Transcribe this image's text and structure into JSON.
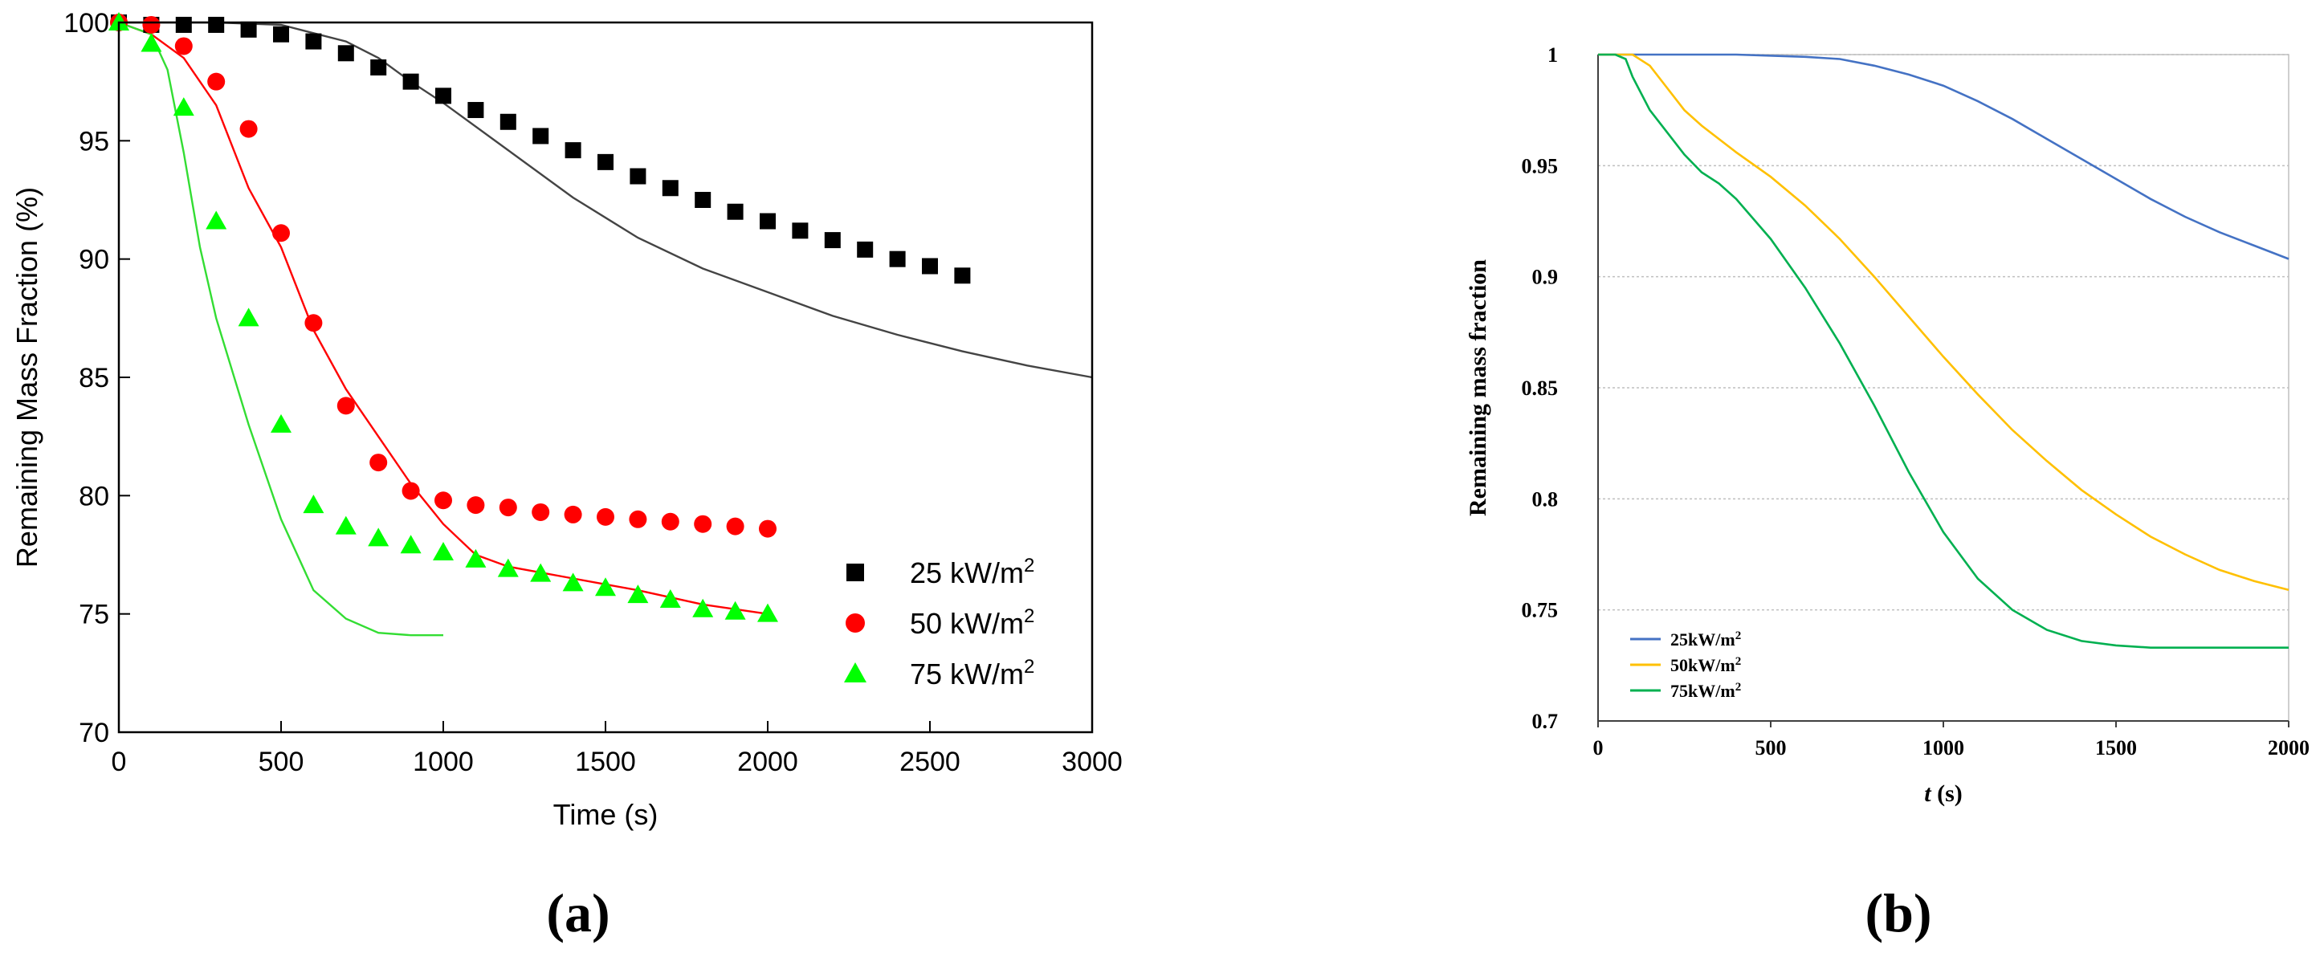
{
  "chart_data": [
    {
      "panel": "a",
      "type": "scatter",
      "caption": "(a)",
      "xlabel": "Time (s)",
      "ylabel": "Remaining Mass Fraction (%)",
      "xlim": [
        0,
        3000
      ],
      "ylim": [
        70,
        100
      ],
      "xticks": [
        0,
        500,
        1000,
        1500,
        2000,
        2500,
        3000
      ],
      "yticks": [
        70,
        75,
        80,
        85,
        90,
        95,
        100
      ],
      "grid": false,
      "legend_position": "bottom-right",
      "series": [
        {
          "name": "25 kW/m",
          "sup": "2",
          "marker": "square",
          "color": "#000000",
          "x": [
            0,
            100,
            200,
            300,
            400,
            500,
            600,
            700,
            800,
            900,
            1000,
            1100,
            1200,
            1300,
            1400,
            1500,
            1600,
            1700,
            1800,
            1900,
            2000,
            2100,
            2200,
            2300,
            2400,
            2500,
            2600
          ],
          "y": [
            100,
            99.9,
            99.9,
            99.9,
            99.7,
            99.5,
            99.2,
            98.7,
            98.1,
            97.5,
            96.9,
            96.3,
            95.8,
            95.2,
            94.6,
            94.1,
            93.5,
            93.0,
            92.5,
            92.0,
            91.6,
            91.2,
            90.8,
            90.4,
            90.0,
            89.7,
            89.3
          ],
          "model_x": [
            0,
            300,
            500,
            700,
            800,
            900,
            1000,
            1200,
            1400,
            1600,
            1800,
            2000,
            2200,
            2400,
            2600,
            2800,
            3000
          ],
          "model_y": [
            100,
            100,
            99.9,
            99.2,
            98.5,
            97.5,
            96.6,
            94.6,
            92.6,
            90.9,
            89.6,
            88.6,
            87.6,
            86.8,
            86.1,
            85.5,
            85.0
          ]
        },
        {
          "name": "50 kW/m",
          "sup": "2",
          "marker": "circle",
          "color": "#ff0000",
          "x": [
            0,
            100,
            200,
            300,
            400,
            500,
            600,
            700,
            800,
            900,
            1000,
            1100,
            1200,
            1300,
            1400,
            1500,
            1600,
            1700,
            1800,
            1900,
            2000
          ],
          "y": [
            100,
            99.9,
            99.0,
            97.5,
            95.5,
            91.1,
            87.3,
            83.8,
            81.4,
            80.2,
            79.8,
            79.6,
            79.5,
            79.3,
            79.2,
            79.1,
            79.0,
            78.9,
            78.8,
            78.7,
            78.6
          ],
          "model_x": [
            0,
            100,
            200,
            300,
            400,
            500,
            600,
            700,
            800,
            900,
            1000,
            1100,
            1200,
            1400,
            1600,
            1800,
            2000
          ],
          "model_y": [
            100,
            99.5,
            98.5,
            96.5,
            93.0,
            90.5,
            87.0,
            84.5,
            82.5,
            80.5,
            78.8,
            77.5,
            77.0,
            76.5,
            76.0,
            75.4,
            75.0
          ]
        },
        {
          "name": "75 kW/m",
          "sup": "2",
          "marker": "triangle",
          "color": "#00ff00",
          "x": [
            0,
            100,
            200,
            300,
            400,
            500,
            600,
            700,
            800,
            900,
            1000,
            1100,
            1200,
            1300,
            1400,
            1500,
            1600,
            1700,
            1800,
            1900,
            2000
          ],
          "y": [
            100,
            99.1,
            96.4,
            91.6,
            87.5,
            83.0,
            79.6,
            78.7,
            78.2,
            77.9,
            77.6,
            77.3,
            76.9,
            76.7,
            76.3,
            76.1,
            75.8,
            75.6,
            75.2,
            75.1,
            75.0
          ],
          "model_x": [
            0,
            100,
            150,
            200,
            250,
            300,
            400,
            500,
            600,
            700,
            800,
            900,
            1000
          ],
          "model_y": [
            100,
            99.5,
            98.0,
            94.5,
            90.5,
            87.5,
            83.0,
            79.0,
            76.0,
            74.8,
            74.2,
            74.1,
            74.1
          ]
        }
      ]
    },
    {
      "panel": "b",
      "type": "line",
      "caption": "(b)",
      "xlabel": "t",
      "xlabel_unit": " (s)",
      "ylabel": "Remaining mass fraction",
      "xlim": [
        0,
        2000
      ],
      "ylim": [
        0.7,
        1.0
      ],
      "xticks": [
        0,
        500,
        1000,
        1500,
        2000
      ],
      "yticks": [
        0.7,
        0.75,
        0.8,
        0.85,
        0.9,
        0.95,
        1
      ],
      "ytick_labels": [
        "0.7",
        "0.75",
        "0.8",
        "0.85",
        "0.9",
        "0.95",
        "1"
      ],
      "grid": true,
      "legend_position": "bottom-left",
      "series": [
        {
          "name": "25kW/m",
          "sup": "2",
          "color": "#4472c4",
          "x": [
            0,
            200,
            400,
            600,
            700,
            800,
            900,
            1000,
            1100,
            1200,
            1300,
            1400,
            1500,
            1600,
            1700,
            1800,
            1900,
            2000
          ],
          "y": [
            1.0,
            1.0,
            1.0,
            0.999,
            0.998,
            0.995,
            0.991,
            0.986,
            0.979,
            0.971,
            0.962,
            0.953,
            0.944,
            0.935,
            0.927,
            0.92,
            0.914,
            0.908
          ]
        },
        {
          "name": "50kW/m",
          "sup": "2",
          "color": "#ffc000",
          "x": [
            0,
            100,
            150,
            200,
            250,
            300,
            400,
            500,
            600,
            700,
            800,
            900,
            1000,
            1100,
            1200,
            1300,
            1400,
            1500,
            1600,
            1700,
            1800,
            1900,
            2000
          ],
          "y": [
            1.0,
            1.0,
            0.995,
            0.985,
            0.975,
            0.968,
            0.956,
            0.945,
            0.932,
            0.917,
            0.9,
            0.882,
            0.864,
            0.847,
            0.831,
            0.817,
            0.804,
            0.793,
            0.783,
            0.775,
            0.768,
            0.763,
            0.759
          ]
        },
        {
          "name": "75kW/m",
          "sup": "2",
          "color": "#00b050",
          "x": [
            0,
            50,
            80,
            100,
            150,
            200,
            250,
            300,
            350,
            400,
            500,
            600,
            700,
            800,
            900,
            1000,
            1100,
            1200,
            1300,
            1400,
            1500,
            1600,
            1700,
            1800,
            2000
          ],
          "y": [
            1.0,
            1.0,
            0.998,
            0.99,
            0.975,
            0.965,
            0.955,
            0.947,
            0.942,
            0.935,
            0.917,
            0.895,
            0.87,
            0.842,
            0.812,
            0.785,
            0.764,
            0.75,
            0.741,
            0.736,
            0.734,
            0.733,
            0.733,
            0.733,
            0.733
          ]
        }
      ]
    }
  ]
}
